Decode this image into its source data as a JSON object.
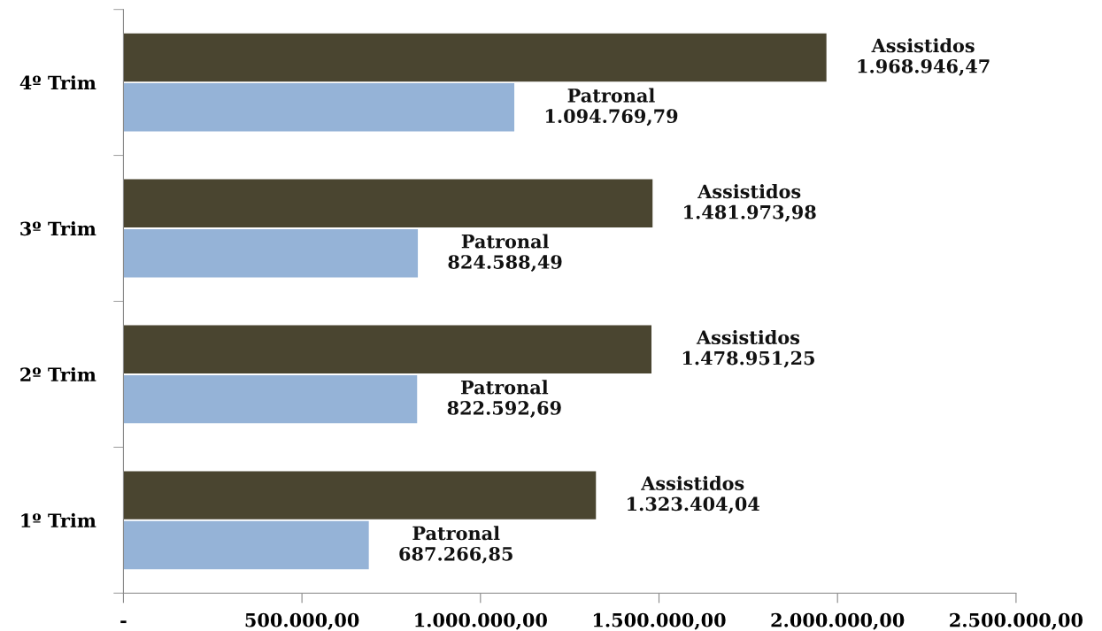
{
  "chart_data": {
    "type": "bar",
    "orientation": "horizontal",
    "categories": [
      "4º Trim",
      "3º Trim",
      "2º Trim",
      "1º Trim"
    ],
    "series": [
      {
        "name": "Assistidos",
        "color": "#4a4530",
        "values": [
          1968946.47,
          1481973.98,
          1478951.25,
          1323404.04
        ],
        "value_labels": [
          "1.968.946,47",
          "1.481.973,98",
          "1.478.951,25",
          "1.323.404,04"
        ]
      },
      {
        "name": "Patronal",
        "color": "#95b3d7",
        "values": [
          1094769.79,
          824588.49,
          822592.69,
          687266.85
        ],
        "value_labels": [
          "1.094.769,79",
          "824.588,49",
          "822.592,69",
          "687.266,85"
        ]
      }
    ],
    "xlim": [
      0,
      2500000
    ],
    "xticks": [
      {
        "value": 0,
        "label": "-"
      },
      {
        "value": 500000,
        "label": "500.000,00"
      },
      {
        "value": 1000000,
        "label": "1.000.000,00"
      },
      {
        "value": 1500000,
        "label": "1.500.000,00"
      },
      {
        "value": 2000000,
        "label": "2.000.000,00"
      },
      {
        "value": 2500000,
        "label": "2.500.000,00"
      }
    ]
  }
}
